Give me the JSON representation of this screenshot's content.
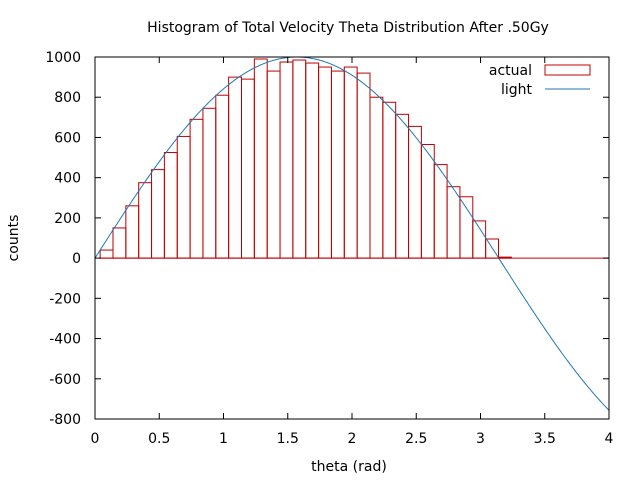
{
  "chart_data": {
    "type": "bar",
    "title": "Histogram of Total Velocity Theta Distribution After .50Gy",
    "xlabel": "theta (rad)",
    "ylabel": "counts",
    "xlim": [
      0,
      4
    ],
    "ylim": [
      -800,
      1000
    ],
    "x_ticks": [
      "0",
      "0.5",
      "1",
      "1.5",
      "2",
      "2.5",
      "3",
      "3.5",
      "4"
    ],
    "y_ticks": [
      "1000",
      "800",
      "600",
      "400",
      "200",
      "0",
      "-200",
      "-400",
      "-600",
      "-800"
    ],
    "grid": false,
    "legend_position": "top-right",
    "series": [
      {
        "name": "actual",
        "kind": "histogram",
        "color": "#c00000",
        "bin_width": 0.1,
        "bin_left_edges": [
          0.04,
          0.14,
          0.24,
          0.34,
          0.44,
          0.54,
          0.64,
          0.74,
          0.84,
          0.94,
          1.04,
          1.14,
          1.24,
          1.34,
          1.44,
          1.54,
          1.64,
          1.74,
          1.84,
          1.94,
          2.04,
          2.14,
          2.24,
          2.34,
          2.44,
          2.54,
          2.64,
          2.74,
          2.84,
          2.94,
          3.04,
          3.14
        ],
        "values": [
          40,
          150,
          260,
          375,
          440,
          525,
          605,
          690,
          745,
          810,
          900,
          890,
          990,
          930,
          975,
          985,
          970,
          950,
          930,
          950,
          920,
          800,
          775,
          715,
          655,
          565,
          465,
          355,
          305,
          185,
          95,
          5
        ]
      },
      {
        "name": "light",
        "kind": "line",
        "color": "#1f77b4",
        "function": "1000*sin(theta)",
        "x_range": [
          0,
          4
        ]
      }
    ]
  }
}
